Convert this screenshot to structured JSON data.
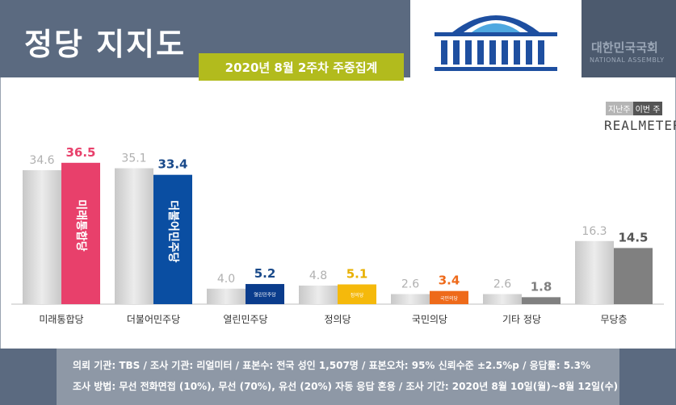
{
  "header": {
    "title": "정당 지지도",
    "subtitle": "2020년 8월 2주차 주중집계"
  },
  "assembly": {
    "name_ko": "대한민국국회",
    "name_en": "NATIONAL ASSEMBLY"
  },
  "legend": {
    "prev": "지난주",
    "current": "이번 주"
  },
  "brand": "REALMETER",
  "footer": {
    "line1": "의뢰 기관: TBS / 조사 기관: 리얼미터 / 표본수: 전국 성인 1,507명 / 표본오차: 95% 신뢰수준 ±2.5%p / 응답률: 5.3%",
    "line2": "조사 방법: 무선 전화면접 (10%), 무선 (70%), 유선 (20%) 자동 응답 혼용 / 조사 기간: 2020년 8월 10일(월)~8월 12일(수)"
  },
  "colors": {
    "prev_bar": "#d4d4d4",
    "label_prev": "#b0b0b0"
  },
  "chart_data": {
    "type": "bar",
    "categories": [
      "미래통합당",
      "더불어민주당",
      "열린민주당",
      "정의당",
      "국민의당",
      "기타 정당",
      "무당층"
    ],
    "series": [
      {
        "name": "지난주",
        "values": [
          34.6,
          35.1,
          4.0,
          4.8,
          2.6,
          2.6,
          16.3
        ]
      },
      {
        "name": "이번 주",
        "values": [
          36.5,
          33.4,
          5.2,
          5.1,
          3.4,
          1.8,
          14.5
        ]
      }
    ],
    "current_colors": [
      "#e8406b",
      "#0a4ea2",
      "#0a3c8c",
      "#f5b90b",
      "#ee6a1a",
      "#808080",
      "#808080"
    ],
    "current_label_colors": [
      "#e8406b",
      "#1a4a8a",
      "#1a4a8a",
      "#e8b000",
      "#ee6a1a",
      "#808080",
      "#555555"
    ],
    "bar_logos": [
      "미래통합당",
      "더불어민주당",
      "열린민주당",
      "정의당",
      "국민의당",
      "",
      ""
    ],
    "ylim": [
      0,
      40
    ]
  }
}
